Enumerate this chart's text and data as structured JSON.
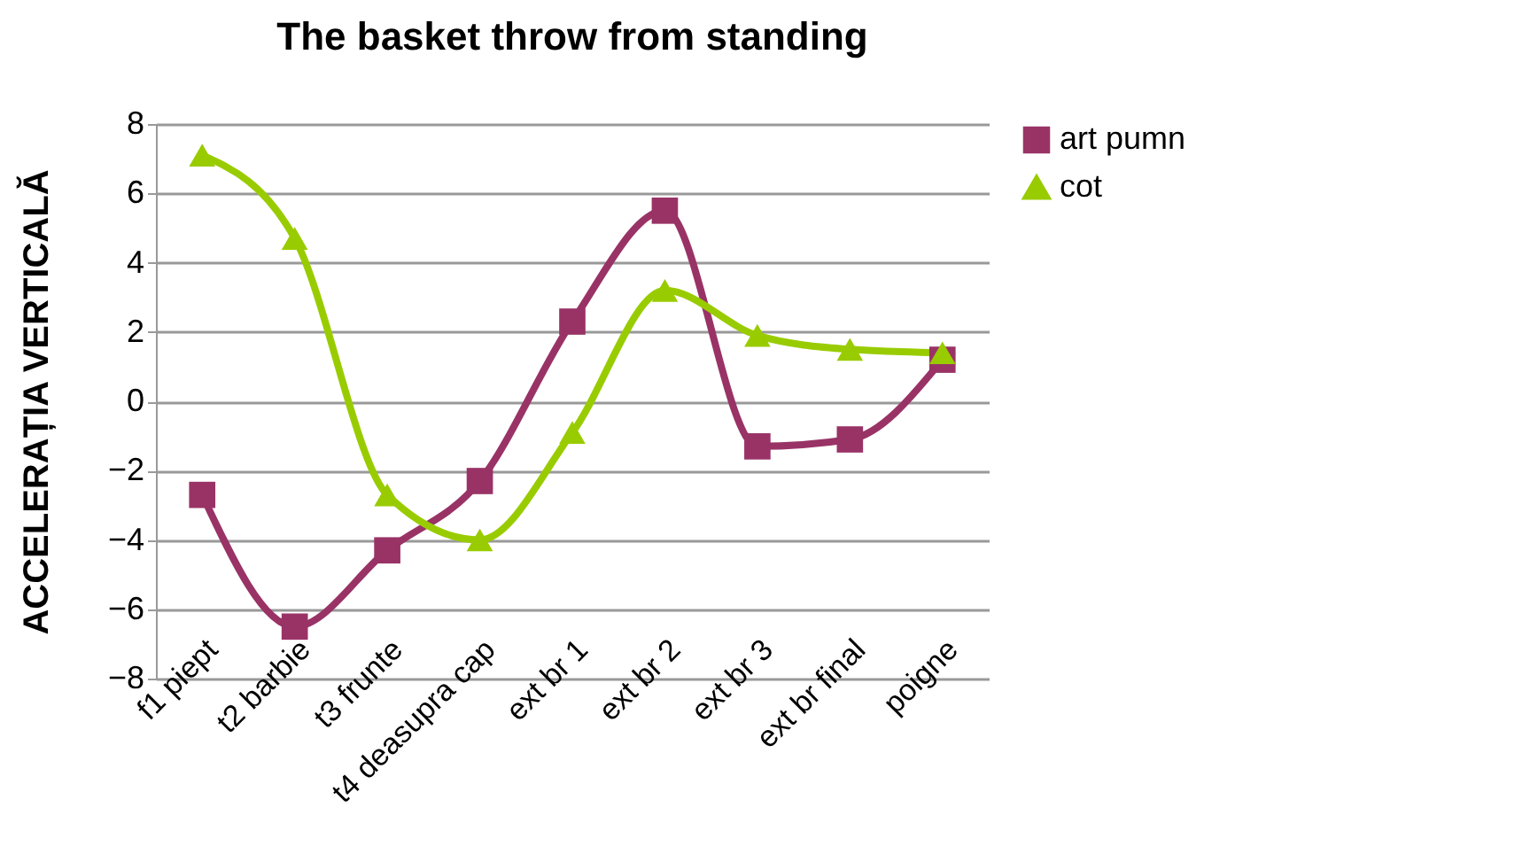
{
  "chart_data": {
    "type": "line",
    "title": "The basket throw from standing",
    "ylabel": "ACCELERAȚIA  VERTICALĂ",
    "categories": [
      "f1 piept",
      "t2 barbie",
      "t3 frunte",
      "t4 deasupra cap",
      "ext br 1",
      "ext br 2",
      "ext br 3",
      "ext br final",
      "poigne"
    ],
    "series": [
      {
        "name": "art pumn",
        "color": "#993366",
        "marker": "square",
        "values": [
          -2.7,
          -6.5,
          -4.3,
          -2.3,
          2.3,
          5.5,
          -1.3,
          -1.1,
          1.2
        ]
      },
      {
        "name": "cot",
        "color": "#99cc00",
        "marker": "triangle",
        "values": [
          7.1,
          4.7,
          -2.7,
          -4.0,
          -0.9,
          3.2,
          1.9,
          1.5,
          1.4
        ]
      }
    ],
    "ylim": [
      -8,
      8
    ],
    "yticks": [
      -8,
      -6,
      -4,
      -2,
      0,
      2,
      4,
      6,
      8
    ],
    "grid": "y",
    "legend": "right",
    "line_style": "solid"
  }
}
